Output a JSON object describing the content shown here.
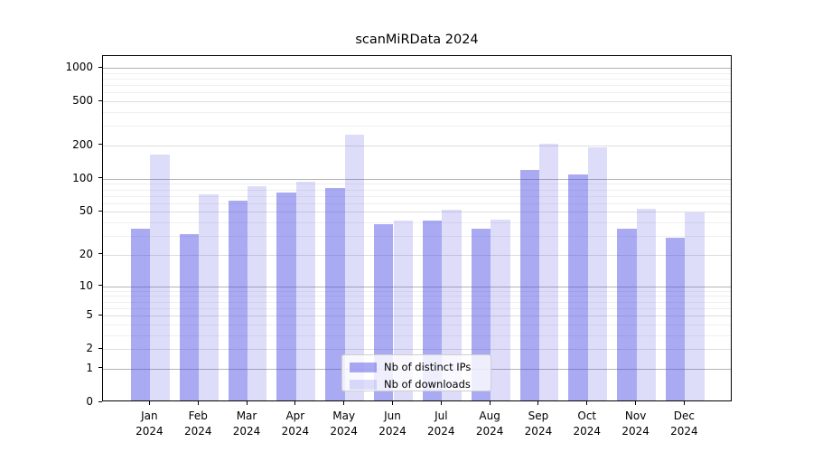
{
  "title": "scanMiRData 2024",
  "chart_data": {
    "type": "bar",
    "title": "scanMiRData 2024",
    "categories": [
      "Jan",
      "Feb",
      "Mar",
      "Apr",
      "May",
      "Jun",
      "Jul",
      "Aug",
      "Sep",
      "Oct",
      "Nov",
      "Dec"
    ],
    "category_year": "2024",
    "series": [
      {
        "name": "Nb of distinct IPs",
        "color": "rgba(66,66,228,0.45)",
        "values": [
          34,
          30,
          61,
          73,
          79,
          37,
          40,
          34,
          115,
          105,
          34,
          28
        ]
      },
      {
        "name": "Nb of downloads",
        "color": "rgba(66,66,228,0.18)",
        "values": [
          160,
          69,
          82,
          90,
          240,
          40,
          50,
          41,
          200,
          184,
          51,
          48
        ]
      }
    ],
    "y_ticks": [
      0,
      1,
      2,
      5,
      10,
      20,
      50,
      100,
      200,
      500,
      1000
    ],
    "y_scale": "log1p",
    "ylim": [
      0,
      1276
    ],
    "xlabel": "",
    "ylabel": "",
    "grid": "horizontal",
    "legend_position": "inside-lower-center"
  }
}
